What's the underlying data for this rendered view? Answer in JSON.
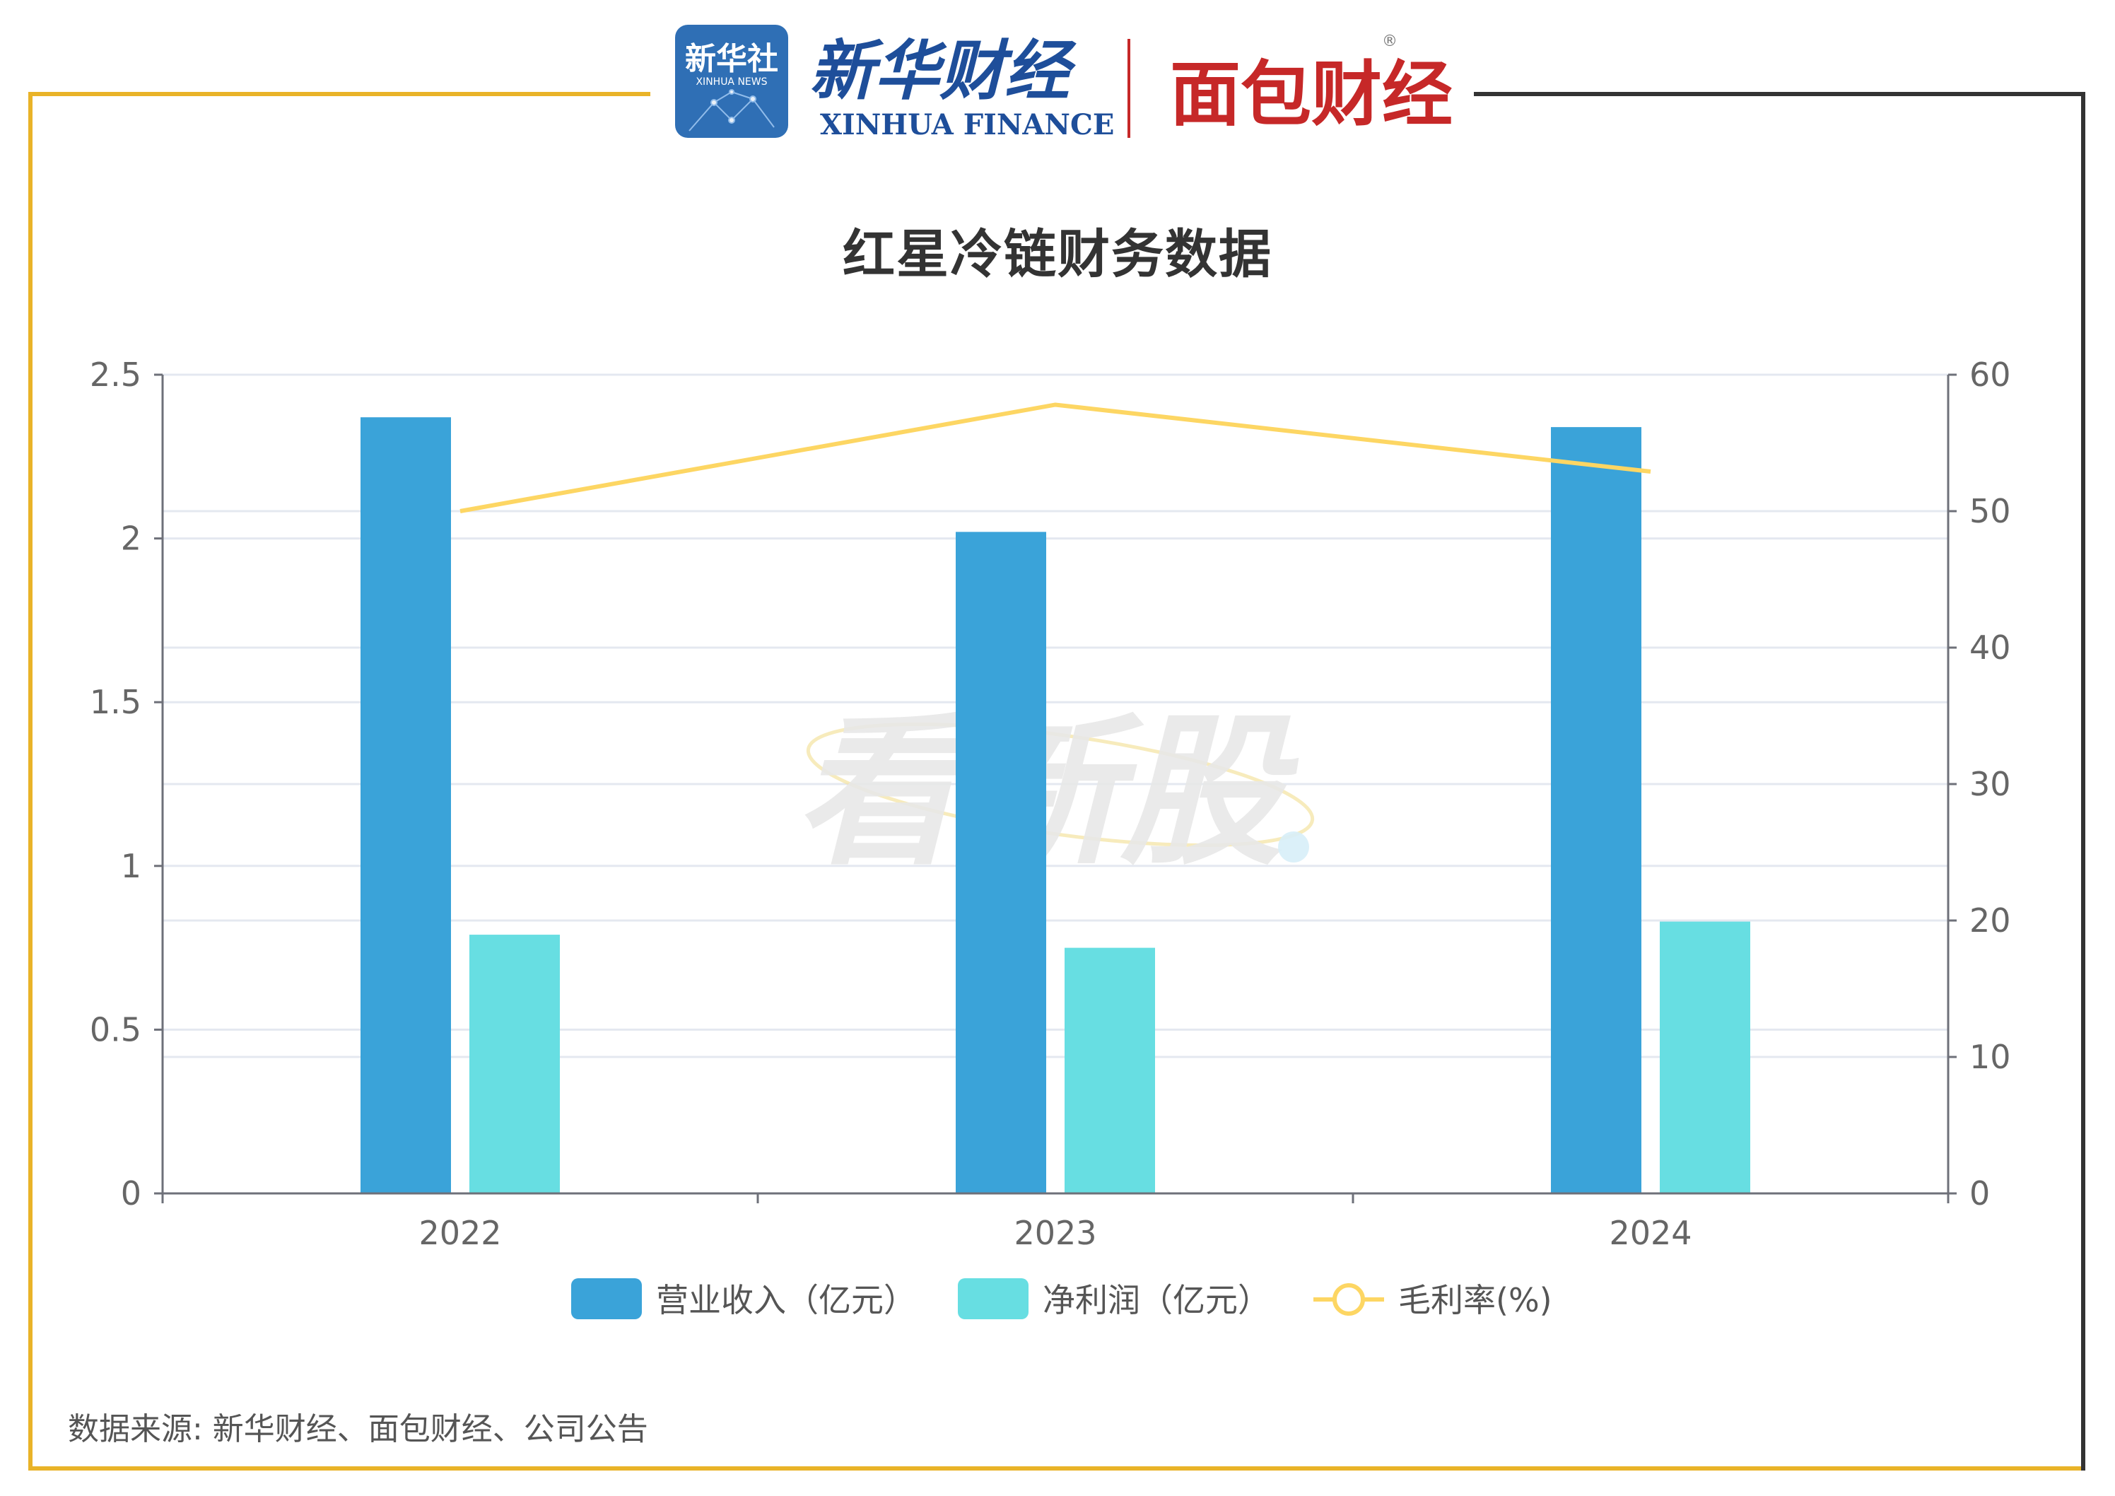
{
  "header": {
    "xinhua_news_logo_text": "新华社",
    "xinhua_news_logo_subtext": "XINHUA NEWS",
    "xinhua_finance_cn": "新华财经",
    "xinhua_finance_en": "XINHUA FINANCE",
    "mianbao_logo_text": "面包财经",
    "registered_mark": "®"
  },
  "watermark_text": "看新股",
  "colors": {
    "revenue": "#3AA3D9",
    "net_profit": "#67DEE2",
    "gross_margin": "#FDD663",
    "frame_gold": "#E9B328",
    "frame_dark": "#333333",
    "grid": "#E4E8F0",
    "axis": "#6E7079",
    "text": "#666666"
  },
  "footer": {
    "source": "数据来源: 新华财经、面包财经、公司公告"
  },
  "chart_data": {
    "type": "bar",
    "title": "红星冷链财务数据",
    "categories": [
      "2022",
      "2023",
      "2024"
    ],
    "series": [
      {
        "name": "营业收入（亿元）",
        "type": "bar",
        "axis": "left",
        "values": [
          2.37,
          2.02,
          2.34
        ]
      },
      {
        "name": "净利润（亿元）",
        "type": "bar",
        "axis": "left",
        "values": [
          0.79,
          0.75,
          0.83
        ]
      },
      {
        "name": "毛利率(%)",
        "type": "line",
        "axis": "right",
        "values": [
          50.0,
          57.8,
          52.9
        ]
      }
    ],
    "y_left": {
      "min": 0,
      "max": 2.5,
      "ticks": [
        "0",
        "0.5",
        "1",
        "1.5",
        "2",
        "2.5"
      ]
    },
    "y_right": {
      "min": 0,
      "max": 60,
      "ticks": [
        "0",
        "10",
        "20",
        "30",
        "40",
        "50",
        "60"
      ]
    },
    "grid": true,
    "legend_position": "bottom"
  }
}
